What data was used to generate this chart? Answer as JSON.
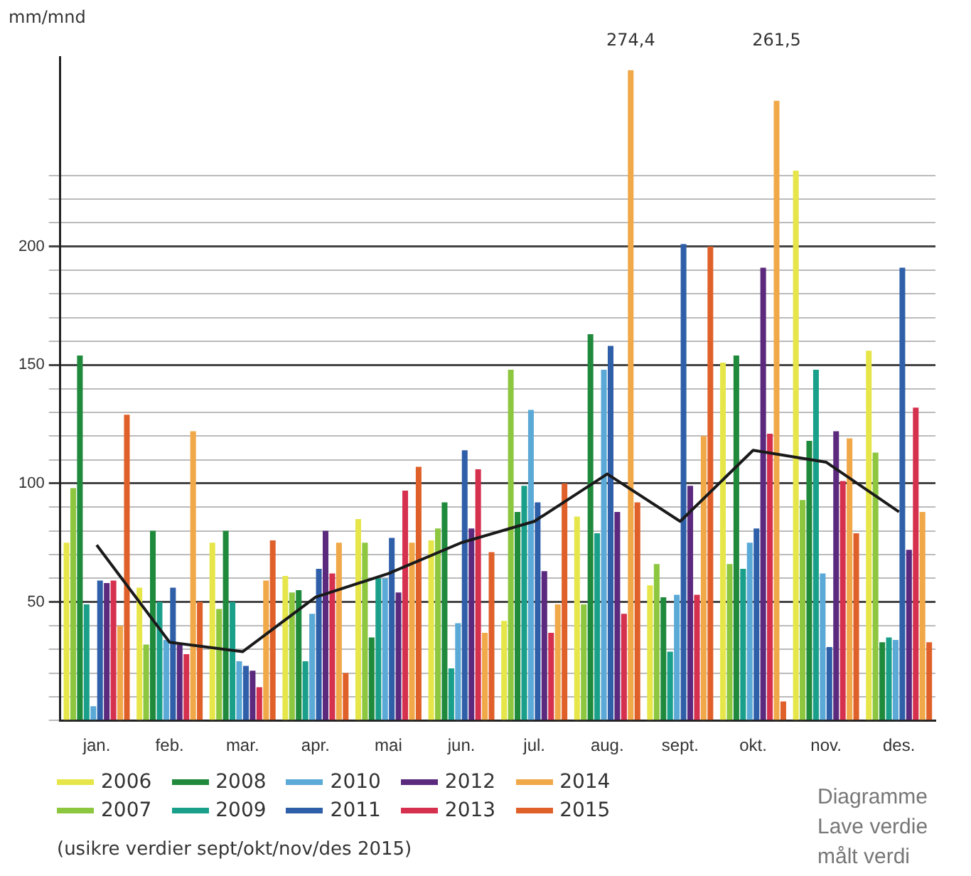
{
  "chart_data": {
    "type": "bar",
    "ylabel": "mm/mnd",
    "categories": [
      "jan.",
      "feb.",
      "mar.",
      "apr.",
      "mai",
      "jun.",
      "jul.",
      "aug.",
      "sept.",
      "okt.",
      "nov.",
      "des."
    ],
    "series": [
      {
        "name": "2006",
        "color": "#e6e64a",
        "values": [
          75,
          56,
          75,
          61,
          85,
          76,
          42,
          86,
          57,
          151,
          232,
          156
        ]
      },
      {
        "name": "2007",
        "color": "#8dc63f",
        "values": [
          98,
          32,
          47,
          54,
          75,
          81,
          148,
          49,
          66,
          66,
          93,
          113
        ]
      },
      {
        "name": "2008",
        "color": "#1f8a3c",
        "values": [
          154,
          80,
          80,
          55,
          35,
          92,
          88,
          163,
          52,
          154,
          118,
          33
        ]
      },
      {
        "name": "2009",
        "color": "#1aa08a",
        "values": [
          49,
          50,
          50,
          25,
          60,
          22,
          99,
          79,
          29,
          64,
          148,
          35
        ]
      },
      {
        "name": "2010",
        "color": "#5aa9d6",
        "values": [
          6,
          34,
          25,
          45,
          60,
          41,
          131,
          148,
          53,
          75,
          62,
          34
        ]
      },
      {
        "name": "2011",
        "color": "#2e5fa8",
        "values": [
          59,
          56,
          23,
          64,
          77,
          114,
          92,
          158,
          201,
          81,
          31,
          191
        ]
      },
      {
        "name": "2012",
        "color": "#5b2a7e",
        "values": [
          58,
          32,
          21,
          80,
          54,
          81,
          63,
          88,
          99,
          191,
          122,
          72
        ]
      },
      {
        "name": "2013",
        "color": "#d6304f",
        "values": [
          59,
          28,
          14,
          62,
          97,
          106,
          37,
          45,
          53,
          121,
          101,
          132
        ]
      },
      {
        "name": "2014",
        "color": "#f0a848",
        "values": [
          40,
          122,
          59,
          75,
          75,
          37,
          49,
          274.4,
          120,
          261.5,
          119,
          88
        ],
        "value_labels": [
          null,
          null,
          null,
          null,
          null,
          null,
          null,
          "274,4",
          null,
          "261,5",
          null,
          null
        ]
      },
      {
        "name": "2015",
        "color": "#e0602a",
        "values": [
          129,
          50,
          76,
          20,
          107,
          71,
          100,
          92,
          200,
          8,
          79,
          33
        ]
      },
      {
        "type": "line",
        "color": "#1a1a1a",
        "values": [
          74,
          33,
          29,
          52,
          62,
          75,
          84,
          104,
          84,
          114,
          109,
          88
        ]
      }
    ],
    "ylim": [
      0,
      280
    ],
    "yticks": [
      {
        "value": 0,
        "label": null
      },
      {
        "value": 10,
        "label": null
      },
      {
        "value": 20,
        "label": null
      },
      {
        "value": 30,
        "label": null
      },
      {
        "value": 40,
        "label": null
      },
      50,
      {
        "value": 60,
        "label": null
      },
      {
        "value": 70,
        "label": null
      },
      {
        "value": 80,
        "label": null
      },
      {
        "value": 90,
        "label": null
      },
      100,
      {
        "value": 110,
        "label": null
      },
      {
        "value": 120,
        "label": null
      },
      {
        "value": 130,
        "label": null
      },
      {
        "value": 140,
        "label": null
      },
      150,
      {
        "value": 160,
        "label": null
      },
      {
        "value": 170,
        "label": null
      },
      {
        "value": 180,
        "label": null
      },
      {
        "value": 190,
        "label": null
      },
      200,
      {
        "value": 210,
        "label": null
      },
      {
        "value": 220,
        "label": null
      },
      {
        "value": 230,
        "label": null
      }
    ],
    "grid": "y",
    "legend": "bottom",
    "annotations": [
      "(usikre verdier sept/okt/nov/des 2015)",
      "Diagramme",
      "Lave verdie",
      "målt verdi"
    ]
  }
}
